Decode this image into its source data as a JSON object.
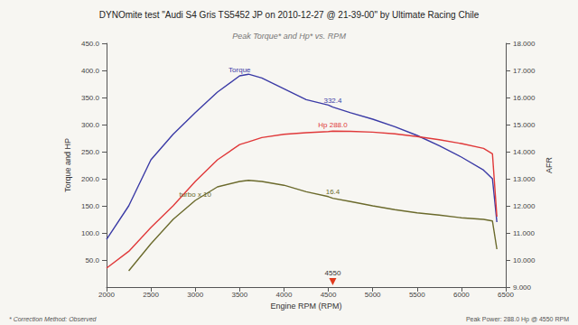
{
  "chart_data": {
    "type": "line",
    "title": "DYNOmite test \"Audi S4 Gris TS5452 JP on 2010-12-27 @ 21-39-00\" by Ultimate Racing Chile",
    "subtitle": "Peak Torque* and Hp* vs. RPM",
    "x_label": "Engine RPM (RPM)",
    "y_label": "Torque and HP",
    "y2_label": "AFR",
    "x": [
      2000,
      2250,
      2500,
      2750,
      3000,
      3250,
      3500,
      3600,
      3750,
      4000,
      4250,
      4500,
      4550,
      4750,
      5000,
      5250,
      5500,
      5750,
      6000,
      6250,
      6350,
      6400
    ],
    "series": [
      {
        "name": "Torque",
        "color": "#3b3ba6",
        "values": [
          88,
          150,
          235,
          282,
          322,
          360,
          390,
          393,
          386,
          366,
          346,
          336,
          332.4,
          322,
          310,
          296,
          280,
          261,
          240,
          216,
          200,
          120
        ]
      },
      {
        "name": "Hp",
        "color": "#e0393a",
        "values": [
          35,
          66,
          110,
          150,
          195,
          235,
          263,
          268,
          276,
          282,
          285,
          287,
          288,
          287.5,
          286,
          283,
          278,
          272,
          265,
          256,
          246,
          130
        ]
      },
      {
        "name": "turbo x 10",
        "color": "#6b6a2c",
        "values": [
          null,
          30,
          80,
          125,
          160,
          185,
          195,
          197,
          195,
          188,
          176,
          167,
          164,
          158,
          150,
          143,
          137,
          133,
          128,
          125,
          122,
          70
        ]
      }
    ],
    "annotations": [
      {
        "text": "Torque",
        "x": 3500,
        "series": "Torque"
      },
      {
        "text": "332.4",
        "x": 4550,
        "series": "Torque"
      },
      {
        "text": "Hp 288.0",
        "x": 4550,
        "series": "Hp"
      },
      {
        "text": "turbo x 10",
        "x": 3000,
        "series": "turbo x 10"
      },
      {
        "text": "16.4",
        "x": 4550,
        "series": "turbo x 10"
      },
      {
        "text": "4550",
        "x": 4550,
        "color": "#e03a1e"
      }
    ],
    "notes": [
      "* Correction Method: Observed",
      "Peak Power: 288.0 Hp @ 4550 RPM"
    ],
    "xlim": [
      2000,
      6500
    ],
    "xticks": [
      2000,
      2500,
      3000,
      3500,
      4000,
      4500,
      5000,
      5500,
      6000,
      6500
    ],
    "ylim": [
      0,
      450
    ],
    "yticks": [
      {
        "value": 50,
        "label": "50.0"
      },
      {
        "value": 100,
        "label": "100.0"
      },
      {
        "value": 150,
        "label": "150.0"
      },
      {
        "value": 200,
        "label": "200.0"
      },
      {
        "value": 250,
        "label": "250.0"
      },
      {
        "value": 300,
        "label": "300.0"
      },
      {
        "value": 350,
        "label": "350.0"
      },
      {
        "value": 400,
        "label": "400.0"
      },
      {
        "value": 450,
        "label": "450.0"
      }
    ],
    "y2lim": [
      9,
      18
    ],
    "y2ticks": [
      {
        "value": 9,
        "label": "9.000"
      },
      {
        "value": 10,
        "label": "10.000"
      },
      {
        "value": 11,
        "label": "11.000"
      },
      {
        "value": 12,
        "label": "12.000"
      },
      {
        "value": 13,
        "label": "13.000"
      },
      {
        "value": 14,
        "label": "14.000"
      },
      {
        "value": 15,
        "label": "15.000"
      },
      {
        "value": 16,
        "label": "16.000"
      },
      {
        "value": 17,
        "label": "17.000"
      },
      {
        "value": 18,
        "label": "18.000"
      }
    ],
    "grid": false
  }
}
